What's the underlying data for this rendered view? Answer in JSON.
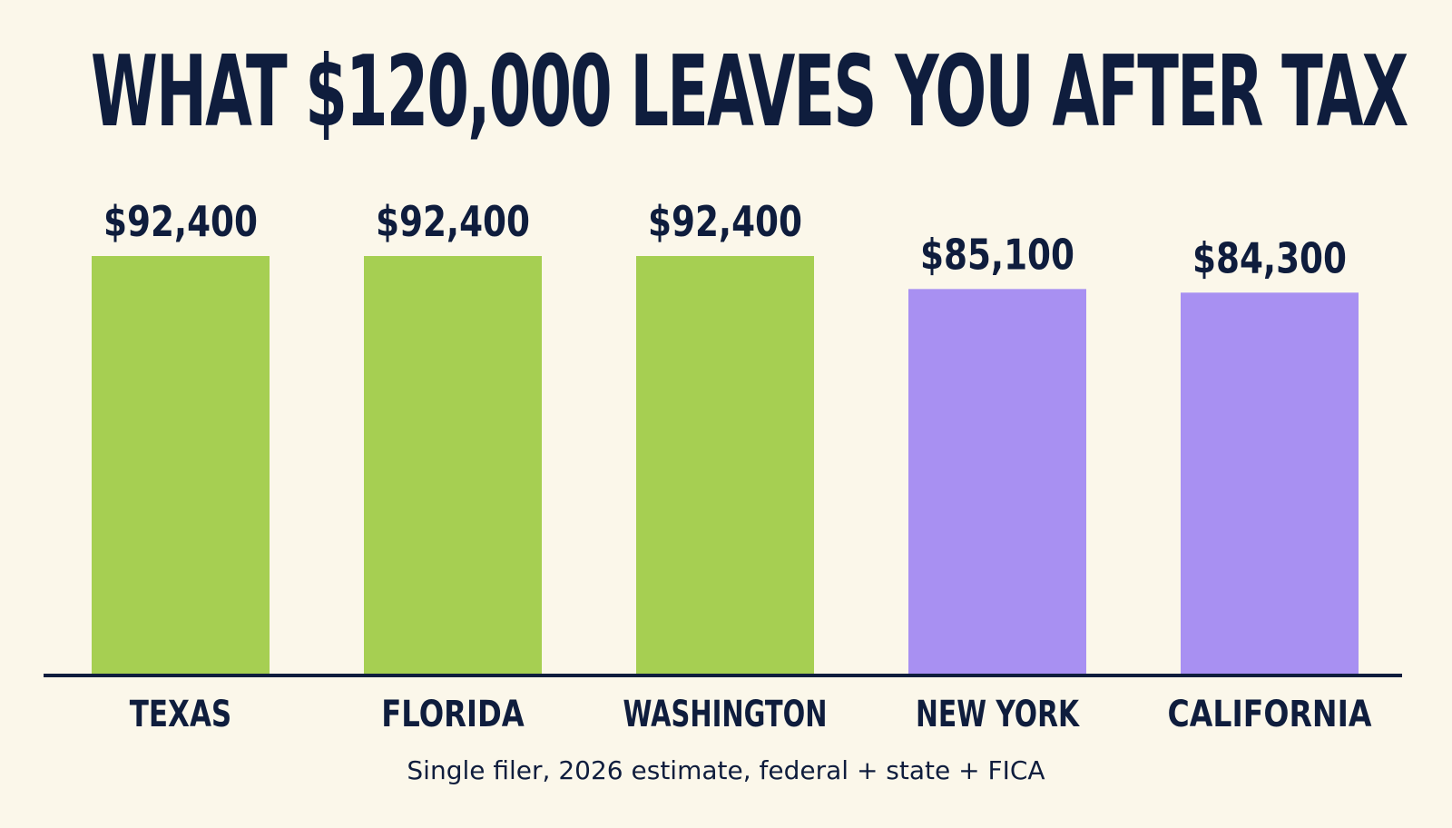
{
  "chart_data": {
    "type": "bar",
    "title": "WHAT $120,000 LEAVES YOU AFTER TAX",
    "categories": [
      "TEXAS",
      "FLORIDA",
      "WASHINGTON",
      "NEW YORK",
      "CALIFORNIA"
    ],
    "values": [
      92400,
      92400,
      92400,
      85100,
      84300
    ],
    "data_labels": [
      "$92,400",
      "$92,400",
      "$92,400",
      "$85,100",
      "$84,300"
    ],
    "bar_colors": [
      "#a6cf52",
      "#a6cf52",
      "#a6cf52",
      "#a890f2",
      "#a890f2"
    ],
    "ylim": [
      0,
      92400
    ],
    "xlabel": "",
    "ylabel": "",
    "grid": false,
    "legend": "none",
    "note": "Single filer, 2026 estimate, federal + state + FICA"
  },
  "colors": {
    "background": "#fbf7ea",
    "text": "#0f1d3d",
    "no_income_tax_bar": "#a6cf52",
    "income_tax_bar": "#a890f2",
    "baseline": "#0f1d3d"
  }
}
